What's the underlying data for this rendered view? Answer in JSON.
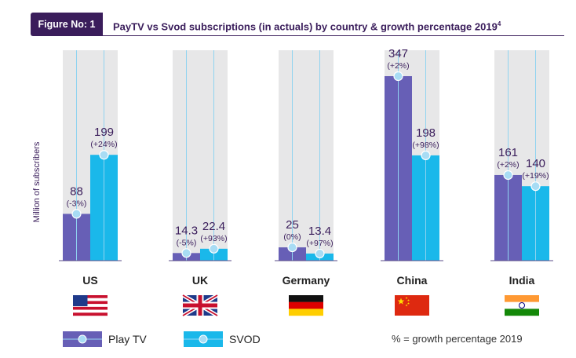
{
  "figure": {
    "badge": "Figure No: 1",
    "title": "PayTV vs Svod subscriptions (in actuals) by country & growth percentage 2019",
    "title_sup": "4"
  },
  "legend": {
    "items": [
      {
        "label": "Play TV",
        "color": "#675fb6"
      },
      {
        "label": "SVOD",
        "color": "#1ab8ea"
      }
    ],
    "note": "% = growth percentage 2019"
  },
  "colors": {
    "paytv": "#675fb6",
    "svod": "#1ab8ea",
    "track": "#e7e7e8",
    "label_text": "#3a1d5b",
    "dot": "#a8dcf4"
  },
  "chart_data": {
    "type": "bar",
    "ylabel": "Million of subscribers",
    "ylim": [
      0,
      347
    ],
    "categories": [
      "US",
      "UK",
      "Germany",
      "China",
      "India"
    ],
    "series": [
      {
        "name": "Play TV",
        "values": [
          88,
          14.3,
          25,
          347,
          161
        ],
        "value_labels": [
          "88",
          "14.3",
          "25",
          "347",
          "161"
        ],
        "growth_labels": [
          "(-3%)",
          "(-5%)",
          "(0%)",
          "(+2%)",
          "(+2%)"
        ]
      },
      {
        "name": "SVOD",
        "values": [
          199,
          22.4,
          13.4,
          198,
          140
        ],
        "value_labels": [
          "199",
          "22.4",
          "13.4",
          "198",
          "140"
        ],
        "growth_labels": [
          "(+24%)",
          "(+93%)",
          "(+97%)",
          "(+98%)",
          "(+19%)"
        ]
      }
    ],
    "flags": [
      "us-flag-icon",
      "uk-flag-icon",
      "germany-flag-icon",
      "china-flag-icon",
      "india-flag-icon"
    ]
  }
}
